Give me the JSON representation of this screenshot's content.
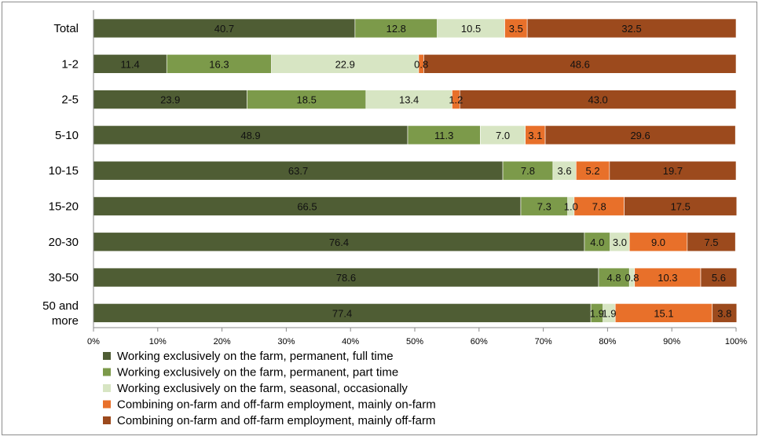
{
  "chart_data": {
    "type": "bar",
    "orientation": "horizontal",
    "stacked": true,
    "percent": true,
    "categories": [
      "Total",
      "1-2",
      "2-5",
      "5-10",
      "10-15",
      "15-20",
      "20-30",
      "30-50",
      "50 and more"
    ],
    "category_label_lines": [
      [
        "Total"
      ],
      [
        "1-2"
      ],
      [
        "2-5"
      ],
      [
        "5-10"
      ],
      [
        "10-15"
      ],
      [
        "15-20"
      ],
      [
        "20-30"
      ],
      [
        "30-50"
      ],
      [
        "50 and",
        "more"
      ]
    ],
    "series": [
      {
        "name": "Working exclusively on the farm, permanent, full time",
        "color": "#4f5d34",
        "values": [
          40.7,
          11.4,
          23.9,
          48.9,
          63.7,
          66.5,
          76.4,
          78.6,
          77.4
        ]
      },
      {
        "name": "Working exclusively on the farm, permanent, part time",
        "color": "#7c9a4a",
        "values": [
          12.8,
          16.3,
          18.5,
          11.3,
          7.8,
          7.3,
          4.0,
          4.8,
          1.9
        ]
      },
      {
        "name": "Working exclusively on the farm, seasonal, occasionally",
        "color": "#d7e5c3",
        "values": [
          10.5,
          22.9,
          13.4,
          7.0,
          3.6,
          1.0,
          3.0,
          0.8,
          1.9
        ]
      },
      {
        "name": "Combining on-farm and off-farm employment, mainly on-farm",
        "color": "#e8702a",
        "values": [
          3.5,
          0.8,
          1.2,
          3.1,
          5.2,
          7.8,
          9.0,
          10.3,
          15.1
        ]
      },
      {
        "name": "Combining on-farm and off-farm employment, mainly off-farm",
        "color": "#9c4a1d",
        "values": [
          32.5,
          48.6,
          43.0,
          29.6,
          19.7,
          17.5,
          7.5,
          5.6,
          3.8
        ]
      }
    ],
    "data_labels": [
      [
        "40.7",
        "11.4",
        "23.9",
        "48.9",
        "63.7",
        "66.5",
        "76.4",
        "78.6",
        "77.4"
      ],
      [
        "12.8",
        "16.3",
        "18.5",
        "11.3",
        "7.8",
        "7.3",
        "4.0",
        "4.8",
        "1.9"
      ],
      [
        "10.5",
        "22.9",
        "13.4",
        "7.0",
        "3.6",
        "1.0",
        "3.0",
        "0.8",
        "1.9"
      ],
      [
        "3.5",
        "0.8",
        "1.2",
        "3.1",
        "5.2",
        "7.8",
        "9.0",
        "10.3",
        "15.1"
      ],
      [
        "32.5",
        "48.6",
        "43.0",
        "29.6",
        "19.7",
        "17.5",
        "7.5",
        "5.6",
        "3.8"
      ]
    ],
    "x_ticks": [
      "0%",
      "10%",
      "20%",
      "30%",
      "40%",
      "50%",
      "60%",
      "70%",
      "80%",
      "90%",
      "100%"
    ],
    "xlim": [
      0,
      100
    ],
    "grid": false,
    "legend_position": "bottom-left",
    "title": "",
    "xlabel": "",
    "ylabel": ""
  }
}
